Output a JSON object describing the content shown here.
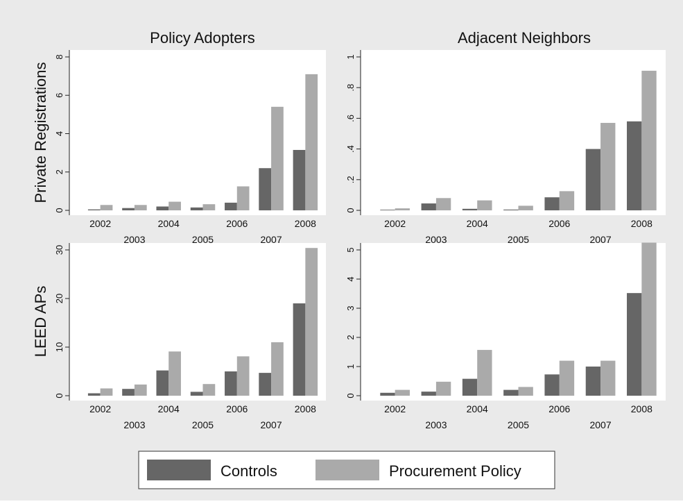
{
  "colors": {
    "background": "#eaeaea",
    "plot_area": "#ffffff",
    "controls": "#666666",
    "procurement": "#aaaaaa"
  },
  "legend": {
    "items": [
      {
        "label": "Controls",
        "color": "#666666"
      },
      {
        "label": "Procurement Policy",
        "color": "#aaaaaa"
      }
    ]
  },
  "chart_data": [
    {
      "type": "bar",
      "title": "Policy Adopters",
      "ylabel": "Private Registrations",
      "xlabel": "",
      "categories": [
        "2002",
        "2003",
        "2004",
        "2005",
        "2006",
        "2007",
        "2008"
      ],
      "ylim": [
        0,
        8
      ],
      "yticks": [
        0,
        2,
        4,
        6,
        8
      ],
      "ytick_labels": [
        "0",
        "2",
        "4",
        "6",
        "8"
      ],
      "series": [
        {
          "name": "Controls",
          "values": [
            0.05,
            0.12,
            0.2,
            0.15,
            0.4,
            2.2,
            3.15
          ]
        },
        {
          "name": "Procurement Policy",
          "values": [
            0.28,
            0.28,
            0.45,
            0.32,
            1.25,
            5.4,
            7.1
          ]
        }
      ]
    },
    {
      "type": "bar",
      "title": "Adjacent Neighbors",
      "ylabel": "",
      "xlabel": "",
      "categories": [
        "2002",
        "2003",
        "2004",
        "2005",
        "2006",
        "2007",
        "2008"
      ],
      "ylim": [
        0,
        1
      ],
      "yticks": [
        0,
        0.2,
        0.4,
        0.6,
        0.8,
        1
      ],
      "ytick_labels": [
        "0",
        ".2",
        ".4",
        ".6",
        ".8",
        "1"
      ],
      "series": [
        {
          "name": "Controls",
          "values": [
            0.004,
            0.045,
            0.01,
            0.005,
            0.085,
            0.4,
            0.58
          ]
        },
        {
          "name": "Procurement Policy",
          "values": [
            0.013,
            0.08,
            0.065,
            0.03,
            0.125,
            0.57,
            0.91
          ]
        }
      ]
    },
    {
      "type": "bar",
      "title": "",
      "ylabel": "LEED APs",
      "xlabel": "",
      "categories": [
        "2002",
        "2003",
        "2004",
        "2005",
        "2006",
        "2007",
        "2008"
      ],
      "ylim": [
        0,
        30
      ],
      "yticks": [
        0,
        10,
        20,
        30
      ],
      "ytick_labels": [
        "0",
        "10",
        "20",
        "30"
      ],
      "series": [
        {
          "name": "Controls",
          "values": [
            0.5,
            1.4,
            5.2,
            0.8,
            5.0,
            4.7,
            19.0
          ]
        },
        {
          "name": "Procurement Policy",
          "values": [
            1.5,
            2.3,
            9.1,
            2.4,
            8.1,
            11.0,
            30.4
          ]
        }
      ]
    },
    {
      "type": "bar",
      "title": "",
      "ylabel": "",
      "xlabel": "",
      "categories": [
        "2002",
        "2003",
        "2004",
        "2005",
        "2006",
        "2007",
        "2008"
      ],
      "ylim": [
        0,
        5
      ],
      "yticks": [
        0,
        1,
        2,
        3,
        4,
        5
      ],
      "ytick_labels": [
        "0",
        "1",
        "2",
        "3",
        "4",
        "5"
      ],
      "series": [
        {
          "name": "Controls",
          "values": [
            0.1,
            0.14,
            0.58,
            0.2,
            0.73,
            1.0,
            3.52
          ]
        },
        {
          "name": "Procurement Policy",
          "values": [
            0.2,
            0.48,
            1.57,
            0.3,
            1.2,
            1.2,
            5.25
          ]
        }
      ]
    }
  ]
}
